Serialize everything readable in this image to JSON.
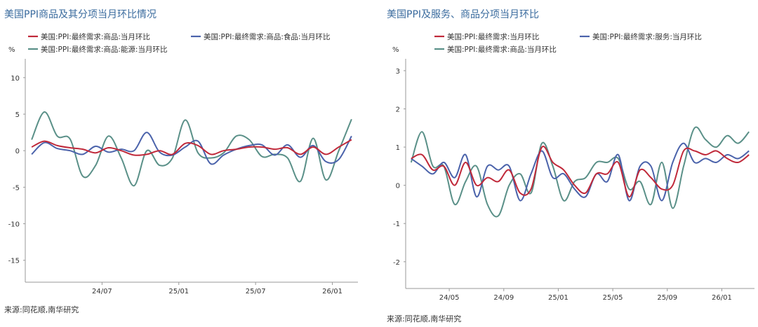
{
  "colors": {
    "title": "#3a6b9e",
    "red": "#c0293a",
    "blue": "#4b63ab",
    "green": "#5a9088",
    "axis": "#999999"
  },
  "charts": [
    {
      "title": "美国PPI商品及其分项当月环比情况",
      "source": "来源:同花顺,南华研究",
      "chart_data": {
        "type": "line",
        "title": "美国PPI商品及其分项当月环比情况",
        "ylabel": "%",
        "ylim": [
          -18,
          12
        ],
        "yticks": [
          10,
          5,
          0,
          -5,
          -10,
          -15
        ],
        "x_tick_labels": [
          "24/07",
          "25/01",
          "25/07",
          "26/01"
        ],
        "x_tick_index": [
          6,
          12,
          18,
          24
        ],
        "x_count": 26,
        "legend_position": "top",
        "grid": false,
        "series": [
          {
            "name": "美国:PPI:最终需求:商品:当月环比",
            "color": "#c0293a",
            "values": [
              0.5,
              1.3,
              0.7,
              0.4,
              0.2,
              -0.3,
              0.4,
              0.0,
              -0.6,
              -0.5,
              0.0,
              -0.5,
              1.0,
              0.7,
              -0.5,
              0.0,
              0.2,
              0.5,
              0.5,
              0.2,
              0.4,
              -0.5,
              0.5,
              -0.5,
              0.5,
              1.5
            ]
          },
          {
            "name": "美国:PPI:最终需求:商品:食品:当月环比",
            "color": "#4b63ab",
            "values": [
              -0.5,
              1.1,
              0.3,
              0.0,
              -0.5,
              0.6,
              -0.2,
              0.2,
              0.0,
              2.5,
              -0.2,
              -0.6,
              0.5,
              1.3,
              -1.8,
              -0.6,
              0.2,
              0.7,
              0.8,
              -0.6,
              0.8,
              -0.9,
              0.7,
              -1.5,
              -1.2,
              2.0
            ]
          },
          {
            "name": "美国:PPI:最终需求:商品:能源:当月环比",
            "color": "#5a9088",
            "values": [
              1.5,
              5.3,
              2.0,
              1.6,
              -3.5,
              -2.0,
              2.0,
              -1.0,
              -4.8,
              0.0,
              -2.0,
              -1.0,
              4.2,
              -0.3,
              -1.0,
              -0.3,
              2.0,
              1.5,
              -0.8,
              -0.5,
              -1.0,
              -4.2,
              1.7,
              -4.0,
              0.0,
              4.3
            ]
          }
        ]
      }
    },
    {
      "title": "美国PPI及服务、商品分项当月环比",
      "source": "来源:同花顺,南华研究",
      "chart_data": {
        "type": "line",
        "title": "美国PPI及服务、商品分项当月环比",
        "ylabel": "%",
        "ylim": [
          -2.7,
          3.2
        ],
        "yticks": [
          3,
          2,
          1,
          0,
          -1,
          -2
        ],
        "x_tick_labels": [
          "24/05",
          "24/09",
          "25/01",
          "25/05",
          "25/09",
          "26/01"
        ],
        "x_tick_index": [
          4,
          9,
          14,
          19,
          24,
          29
        ],
        "x_count": 32,
        "legend_position": "top",
        "grid": false,
        "series": [
          {
            "name": "美国:PPI:最终需求:当月环比",
            "color": "#c0293a",
            "values": [
              0.7,
              0.8,
              0.4,
              0.5,
              0.0,
              0.6,
              0.0,
              0.2,
              0.1,
              0.4,
              -0.2,
              -0.1,
              1.0,
              0.6,
              0.4,
              0.0,
              -0.2,
              0.3,
              0.3,
              0.6,
              -0.3,
              0.4,
              0.2,
              -0.1,
              0.0,
              0.9,
              0.9,
              0.8,
              0.9,
              0.7,
              0.6,
              0.8
            ]
          },
          {
            "name": "美国:PPI:最终需求:服务:当月环比",
            "color": "#4b63ab",
            "values": [
              0.7,
              0.5,
              0.3,
              0.6,
              0.2,
              0.8,
              -0.3,
              0.5,
              0.4,
              0.5,
              -0.4,
              0.3,
              0.9,
              0.2,
              0.3,
              -0.1,
              -0.3,
              0.3,
              0.1,
              0.8,
              -0.4,
              0.5,
              0.5,
              -0.4,
              0.6,
              1.1,
              0.6,
              0.7,
              0.6,
              0.8,
              0.7,
              0.9
            ]
          },
          {
            "name": "美国:PPI:最终需求:商品:当月环比",
            "color": "#5a9088",
            "values": [
              0.6,
              1.4,
              0.5,
              0.5,
              -0.5,
              0.1,
              0.5,
              -0.5,
              -0.8,
              0.0,
              0.3,
              -0.2,
              1.1,
              0.5,
              -0.4,
              0.1,
              0.2,
              0.6,
              0.6,
              0.7,
              -0.1,
              0.1,
              -0.5,
              0.6,
              -0.6,
              0.5,
              1.5,
              1.2,
              1.0,
              1.3,
              1.1,
              1.4
            ]
          }
        ]
      }
    }
  ]
}
